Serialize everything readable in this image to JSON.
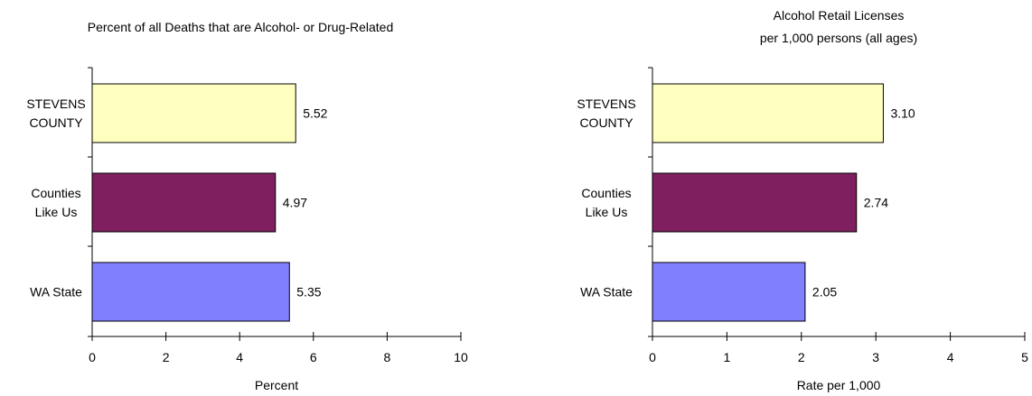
{
  "chart_data": [
    {
      "type": "bar",
      "orientation": "horizontal",
      "title": [
        "Percent of all Deaths that are Alcohol- or Drug-Related"
      ],
      "xlabel": "Percent",
      "ylabel": "",
      "categories": [
        [
          "STEVENS",
          "COUNTY"
        ],
        [
          "Counties",
          "Like Us"
        ],
        [
          "WA State"
        ]
      ],
      "values": [
        5.52,
        4.97,
        5.35
      ],
      "value_labels": [
        "5.52",
        "4.97",
        "5.35"
      ],
      "colors": [
        "#FFFFC0",
        "#7F1F5F",
        "#8080FF"
      ],
      "xlim": [
        0,
        10
      ],
      "xticks": [
        0,
        2,
        4,
        6,
        8,
        10
      ],
      "grid": false
    },
    {
      "type": "bar",
      "orientation": "horizontal",
      "title": [
        "Alcohol Retail Licenses",
        "per 1,000 persons (all ages)"
      ],
      "xlabel": "Rate per 1,000",
      "ylabel": "",
      "categories": [
        [
          "STEVENS",
          "COUNTY"
        ],
        [
          "Counties",
          "Like Us"
        ],
        [
          "WA State"
        ]
      ],
      "values": [
        3.1,
        2.74,
        2.05
      ],
      "value_labels": [
        "3.10",
        "2.74",
        "2.05"
      ],
      "colors": [
        "#FFFFC0",
        "#7F1F5F",
        "#8080FF"
      ],
      "xlim": [
        0,
        5
      ],
      "xticks": [
        0,
        1,
        2,
        3,
        4,
        5
      ],
      "grid": false
    }
  ]
}
